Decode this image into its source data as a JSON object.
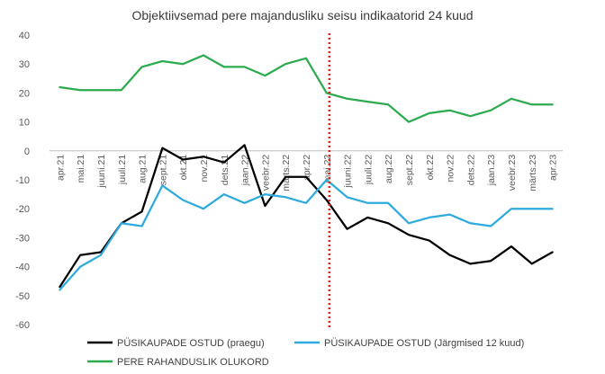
{
  "chart_data": {
    "type": "line",
    "title": "Objektiivsemad pere majandusliku seisu indikaatorid 24 kuud",
    "xlabel": "",
    "ylabel": "",
    "ylim": [
      -60,
      40
    ],
    "yticks": [
      40,
      30,
      20,
      10,
      0,
      -10,
      -20,
      -30,
      -40,
      -50,
      -60
    ],
    "grid": false,
    "legend_position": "bottom",
    "categories": [
      "apr.21",
      "mai.21",
      "juuni.21",
      "juuli.21",
      "aug.21",
      "sept.21",
      "okt.21",
      "nov.21",
      "dets.21",
      "jaan.22",
      "veebr.22",
      "märts.22",
      "apr.22",
      "mai.22",
      "juuni.22",
      "juuli.22",
      "aug.22",
      "sept.22",
      "okt.22",
      "nov.22",
      "dets.22",
      "jaan.23",
      "veebr.23",
      "märts.23",
      "apr.23"
    ],
    "marker_line": {
      "category": "mai.22",
      "color": "#e0231b",
      "style": "dotted"
    },
    "series": [
      {
        "name": "PÜSIKAUPADE OSTUD (praegu)",
        "color": "#000000",
        "values": [
          -47,
          -36,
          -35,
          -25,
          -21,
          1,
          -3,
          -2,
          -4,
          2,
          -19,
          -9,
          -9,
          -17,
          -27,
          -23,
          -25,
          -29,
          -31,
          -36,
          -39,
          -38,
          -33,
          -39,
          -35
        ]
      },
      {
        "name": "PÜSIKAUPADE OSTUD (Järgmised 12 kuud)",
        "color": "#2eaadc",
        "values": [
          -48,
          -40,
          -36,
          -25,
          -26,
          -12,
          -17,
          -20,
          -15,
          -18,
          -15,
          -16,
          -18,
          -10,
          -16,
          -18,
          -18,
          -25,
          -23,
          -22,
          -25,
          -26,
          -20,
          -20,
          -20
        ]
      },
      {
        "name": "PERE RAHANDUSLIK OLUKORD",
        "color": "#2bab4e",
        "values": [
          22,
          21,
          21,
          21,
          29,
          31,
          30,
          33,
          29,
          29,
          26,
          30,
          32,
          20,
          18,
          17,
          16,
          10,
          13,
          14,
          12,
          14,
          18,
          16,
          16
        ]
      }
    ]
  }
}
